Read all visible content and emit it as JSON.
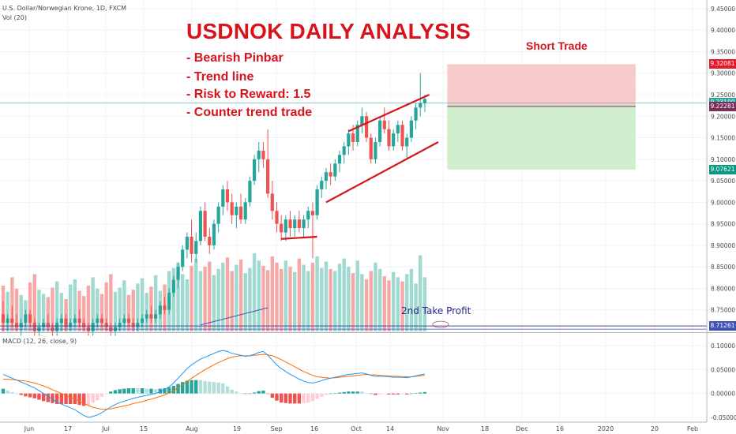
{
  "header": {
    "symbol": "U.S. Dollar/Norwegian Krone, 1D, FXCM",
    "volume": "Vol (20)"
  },
  "annotations": {
    "title": "USDNOK DAILY ANALYSIS",
    "items": [
      "- Bearish Pinbar",
      "- Trend line",
      "- Risk to Reward: 1.5",
      "- Counter trend trade"
    ],
    "short_trade": "Short Trade",
    "take_profit": "2nd Take Profit"
  },
  "price_tags": [
    {
      "label": "9.32081",
      "value": 9.32081,
      "color": "#e8182a"
    },
    {
      "label": "9.23100",
      "value": 9.231,
      "color": "#26a69a"
    },
    {
      "label": "9.22281",
      "value": 9.22281,
      "color": "#7a2f5a"
    },
    {
      "label": "9.07621",
      "value": 9.07621,
      "color": "#089981"
    },
    {
      "label": "8.71261",
      "value": 8.71261,
      "color": "#3f51b5"
    }
  ],
  "colors": {
    "up": "#26a69a",
    "down": "#ef5350",
    "vol_up": "#9fd9cf",
    "vol_down": "#f6a8a6",
    "trend": "#d7141c",
    "macd": "#2196f3",
    "signal": "#ff6d00"
  },
  "chart_data": [
    {
      "type": "candlestick",
      "title": "U.S. Dollar/Norwegian Krone, 1D, FXCM",
      "ylim": [
        8.7,
        9.47
      ],
      "yticks": [
        8.75,
        8.8,
        8.85,
        8.9,
        8.95,
        9.0,
        9.05,
        9.1,
        9.15,
        9.2,
        9.25,
        9.3,
        9.35,
        9.4,
        9.45
      ],
      "ytick_labels": [
        "8.75000",
        "8.80000",
        "8.85000",
        "8.90000",
        "8.95000",
        "9.00000",
        "9.05000",
        "9.10000",
        "9.15000",
        "9.20000",
        "9.25000",
        "9.30000",
        "9.35000",
        "9.40000",
        "9.45000"
      ],
      "x_labels": [
        "Jun",
        "17",
        "Jul",
        "15",
        "Aug",
        "19",
        "Sep",
        "16",
        "Oct",
        "14",
        "Nov",
        "18",
        "Dec",
        "16",
        "2020",
        "20",
        "Feb"
      ],
      "grid": true,
      "ohlc": [
        [
          8.74,
          8.77,
          8.7,
          8.72
        ],
        [
          8.72,
          8.74,
          8.7,
          8.73
        ],
        [
          8.73,
          8.76,
          8.71,
          8.72
        ],
        [
          8.72,
          8.74,
          8.7,
          8.71
        ],
        [
          8.71,
          8.73,
          8.69,
          8.72
        ],
        [
          8.72,
          8.75,
          8.71,
          8.74
        ],
        [
          8.74,
          8.75,
          8.71,
          8.72
        ],
        [
          8.72,
          8.73,
          8.69,
          8.7
        ],
        [
          8.7,
          8.72,
          8.69,
          8.71
        ],
        [
          8.71,
          8.73,
          8.7,
          8.72
        ],
        [
          8.72,
          8.74,
          8.7,
          8.71
        ],
        [
          8.71,
          8.72,
          8.69,
          8.7
        ],
        [
          8.7,
          8.73,
          8.69,
          8.72
        ],
        [
          8.72,
          8.74,
          8.7,
          8.73
        ],
        [
          8.73,
          8.74,
          8.7,
          8.71
        ],
        [
          8.71,
          8.73,
          8.7,
          8.72
        ],
        [
          8.72,
          8.74,
          8.71,
          8.73
        ],
        [
          8.73,
          8.75,
          8.71,
          8.72
        ],
        [
          8.72,
          8.73,
          8.7,
          8.71
        ],
        [
          8.71,
          8.72,
          8.69,
          8.7
        ],
        [
          8.7,
          8.73,
          8.69,
          8.72
        ],
        [
          8.72,
          8.74,
          8.71,
          8.73
        ],
        [
          8.73,
          8.74,
          8.71,
          8.72
        ],
        [
          8.72,
          8.73,
          8.7,
          8.71
        ],
        [
          8.71,
          8.72,
          8.69,
          8.7
        ],
        [
          8.7,
          8.72,
          8.69,
          8.71
        ],
        [
          8.71,
          8.73,
          8.7,
          8.72
        ],
        [
          8.72,
          8.74,
          8.71,
          8.73
        ],
        [
          8.73,
          8.74,
          8.71,
          8.72
        ],
        [
          8.72,
          8.73,
          8.7,
          8.71
        ],
        [
          8.71,
          8.73,
          8.7,
          8.72
        ],
        [
          8.72,
          8.74,
          8.71,
          8.73
        ],
        [
          8.73,
          8.75,
          8.72,
          8.74
        ],
        [
          8.74,
          8.76,
          8.72,
          8.73
        ],
        [
          8.73,
          8.75,
          8.72,
          8.74
        ],
        [
          8.74,
          8.77,
          8.73,
          8.76
        ],
        [
          8.76,
          8.78,
          8.74,
          8.75
        ],
        [
          8.75,
          8.8,
          8.74,
          8.79
        ],
        [
          8.79,
          8.83,
          8.78,
          8.82
        ],
        [
          8.82,
          8.86,
          8.8,
          8.85
        ],
        [
          8.85,
          8.9,
          8.84,
          8.89
        ],
        [
          8.89,
          8.93,
          8.87,
          8.92
        ],
        [
          8.92,
          8.96,
          8.86,
          8.88
        ],
        [
          8.88,
          8.93,
          8.86,
          8.91
        ],
        [
          8.91,
          8.99,
          8.9,
          8.98
        ],
        [
          8.98,
          9.0,
          8.91,
          8.92
        ],
        [
          8.92,
          8.94,
          8.88,
          8.9
        ],
        [
          8.9,
          8.96,
          8.89,
          8.95
        ],
        [
          8.95,
          9.0,
          8.93,
          8.99
        ],
        [
          8.99,
          9.04,
          8.97,
          9.03
        ],
        [
          9.03,
          9.05,
          8.98,
          9.0
        ],
        [
          9.0,
          9.02,
          8.95,
          8.97
        ],
        [
          8.97,
          9.0,
          8.94,
          8.99
        ],
        [
          8.99,
          9.02,
          8.95,
          8.96
        ],
        [
          8.96,
          9.01,
          8.95,
          9.0
        ],
        [
          9.0,
          9.06,
          8.99,
          9.05
        ],
        [
          9.05,
          9.11,
          9.04,
          9.1
        ],
        [
          9.1,
          9.14,
          9.07,
          9.12
        ],
        [
          9.12,
          9.14,
          9.08,
          9.1
        ],
        [
          9.1,
          9.17,
          9.01,
          9.02
        ],
        [
          9.02,
          9.05,
          8.96,
          8.98
        ],
        [
          8.98,
          9.0,
          8.93,
          8.95
        ],
        [
          8.95,
          8.97,
          8.91,
          8.93
        ],
        [
          8.93,
          8.97,
          8.91,
          8.96
        ],
        [
          8.96,
          8.98,
          8.92,
          8.94
        ],
        [
          8.94,
          8.97,
          8.92,
          8.96
        ],
        [
          8.96,
          8.98,
          8.93,
          8.94
        ],
        [
          8.94,
          8.97,
          8.92,
          8.96
        ],
        [
          8.96,
          8.99,
          8.94,
          8.98
        ],
        [
          8.98,
          9.0,
          8.87,
          8.97
        ],
        [
          8.97,
          9.04,
          8.96,
          9.03
        ],
        [
          9.03,
          9.06,
          9.01,
          9.05
        ],
        [
          9.05,
          9.08,
          9.03,
          9.07
        ],
        [
          9.07,
          9.09,
          9.04,
          9.06
        ],
        [
          9.06,
          9.1,
          9.05,
          9.09
        ],
        [
          9.09,
          9.12,
          9.07,
          9.11
        ],
        [
          9.11,
          9.14,
          9.09,
          9.13
        ],
        [
          9.13,
          9.17,
          9.11,
          9.16
        ],
        [
          9.16,
          9.18,
          9.12,
          9.14
        ],
        [
          9.14,
          9.19,
          9.13,
          9.18
        ],
        [
          9.18,
          9.22,
          9.16,
          9.2
        ],
        [
          9.2,
          9.21,
          9.14,
          9.15
        ],
        [
          9.15,
          9.16,
          9.09,
          9.1
        ],
        [
          9.1,
          9.15,
          9.09,
          9.14
        ],
        [
          9.14,
          9.2,
          9.13,
          9.19
        ],
        [
          9.19,
          9.22,
          9.16,
          9.17
        ],
        [
          9.17,
          9.19,
          9.12,
          9.13
        ],
        [
          9.13,
          9.17,
          9.12,
          9.16
        ],
        [
          9.16,
          9.19,
          9.14,
          9.18
        ],
        [
          9.18,
          9.19,
          9.12,
          9.13
        ],
        [
          9.13,
          9.16,
          9.1,
          9.15
        ],
        [
          9.15,
          9.2,
          9.14,
          9.19
        ],
        [
          9.19,
          9.23,
          9.17,
          9.22
        ],
        [
          9.22,
          9.3,
          9.2,
          9.23
        ],
        [
          9.23,
          9.25,
          9.21,
          9.24
        ]
      ],
      "volume": [
        44,
        38,
        52,
        41,
        35,
        30,
        47,
        55,
        40,
        36,
        33,
        42,
        48,
        37,
        31,
        45,
        50,
        39,
        34,
        44,
        52,
        41,
        36,
        47,
        55,
        38,
        42,
        49,
        35,
        40,
        46,
        51,
        37,
        43,
        54,
        39,
        45,
        58,
        61,
        66,
        55,
        50,
        63,
        70,
        58,
        62,
        67,
        54,
        60,
        66,
        71,
        58,
        64,
        69,
        56,
        61,
        75,
        68,
        63,
        59,
        72,
        66,
        60,
        68,
        62,
        57,
        70,
        64,
        58,
        66,
        72,
        61,
        67,
        60,
        58,
        65,
        70,
        62,
        56,
        68,
        55,
        50,
        58,
        66,
        60,
        53,
        49,
        57,
        52,
        48,
        55,
        60,
        46,
        73,
        52
      ],
      "trendlines": [
        {
          "from": [
            77,
            9.165
          ],
          "to": [
            95,
            9.25
          ]
        },
        {
          "from": [
            72,
            9.0
          ],
          "to": [
            97,
            9.14
          ]
        },
        {
          "from": [
            62,
            8.915
          ],
          "to": [
            70,
            8.92
          ]
        }
      ],
      "positions": {
        "stop": 9.32081,
        "entry": 9.22281,
        "target": 9.07621,
        "x_from": 99,
        "x_to": 141
      }
    },
    {
      "type": "line",
      "title": "MACD (12, 26, close, 9)",
      "ylim": [
        -0.06,
        0.125
      ],
      "yticks": [
        -0.05,
        0.0,
        0.05,
        0.1
      ],
      "ytick_labels": [
        "-0.05000",
        "0.00000",
        "0.05000",
        "0.10000"
      ],
      "series": [
        {
          "values": [
            0.04,
            0.036,
            0.032,
            0.028,
            0.024,
            0.02,
            0.016,
            0.012,
            0.006,
            0.0,
            -0.006,
            -0.012,
            -0.018,
            -0.022,
            -0.026,
            -0.03,
            -0.034,
            -0.04,
            -0.046,
            -0.05,
            -0.048,
            -0.045,
            -0.04,
            -0.034,
            -0.028,
            -0.023,
            -0.019,
            -0.016,
            -0.013,
            -0.01,
            -0.008,
            -0.006,
            -0.004,
            -0.002,
            0.0,
            0.004,
            0.008,
            0.014,
            0.022,
            0.032,
            0.042,
            0.052,
            0.06,
            0.066,
            0.072,
            0.076,
            0.08,
            0.084,
            0.088,
            0.09,
            0.088,
            0.084,
            0.082,
            0.08,
            0.078,
            0.079,
            0.082,
            0.086,
            0.088,
            0.08,
            0.07,
            0.06,
            0.052,
            0.046,
            0.04,
            0.035,
            0.03,
            0.026,
            0.023,
            0.022,
            0.024,
            0.027,
            0.03,
            0.032,
            0.034,
            0.036,
            0.038,
            0.04,
            0.041,
            0.042,
            0.043,
            0.041,
            0.038,
            0.036,
            0.036,
            0.036,
            0.035,
            0.034,
            0.034,
            0.034,
            0.033,
            0.035,
            0.037,
            0.039,
            0.041
          ]
        },
        {
          "values": [
            0.03,
            0.03,
            0.029,
            0.028,
            0.027,
            0.026,
            0.024,
            0.022,
            0.019,
            0.016,
            0.012,
            0.008,
            0.004,
            0.0,
            -0.004,
            -0.008,
            -0.012,
            -0.016,
            -0.02,
            -0.025,
            -0.029,
            -0.031,
            -0.033,
            -0.033,
            -0.032,
            -0.03,
            -0.028,
            -0.026,
            -0.024,
            -0.021,
            -0.019,
            -0.017,
            -0.014,
            -0.012,
            -0.009,
            -0.006,
            -0.003,
            0.001,
            0.006,
            0.012,
            0.018,
            0.025,
            0.032,
            0.038,
            0.044,
            0.05,
            0.055,
            0.06,
            0.065,
            0.069,
            0.073,
            0.076,
            0.078,
            0.079,
            0.079,
            0.079,
            0.08,
            0.081,
            0.082,
            0.081,
            0.079,
            0.075,
            0.071,
            0.066,
            0.061,
            0.056,
            0.051,
            0.046,
            0.042,
            0.038,
            0.035,
            0.034,
            0.033,
            0.032,
            0.033,
            0.034,
            0.035,
            0.036,
            0.037,
            0.038,
            0.039,
            0.04,
            0.039,
            0.039,
            0.038,
            0.037,
            0.037,
            0.036,
            0.036,
            0.035,
            0.035,
            0.035,
            0.036,
            0.037,
            0.038
          ]
        }
      ],
      "x_labels": [
        "Jun",
        "17",
        "Jul",
        "15",
        "Aug",
        "19",
        "Sep",
        "16",
        "Oct",
        "14",
        "Nov",
        "18",
        "Dec",
        "16",
        "2020",
        "20",
        "Feb"
      ]
    }
  ]
}
